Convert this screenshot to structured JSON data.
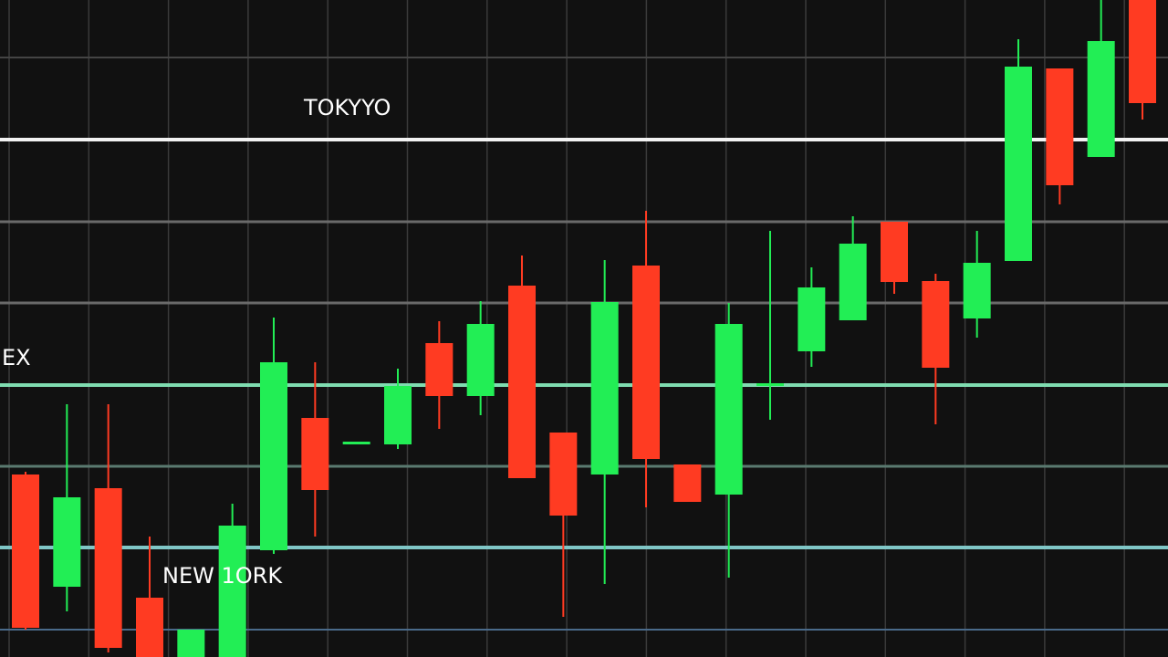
{
  "chart_data": {
    "type": "candlestick",
    "annotations": [
      "TOKYYO",
      "EX",
      "NEW 1ORK"
    ],
    "up_color": "#22ee55",
    "down_color": "#ff3b22",
    "ylim": [
      0,
      720
    ],
    "series": {
      "open": [
        200,
        77,
        185,
        65,
        0,
        0,
        117,
        262,
        236,
        233,
        344,
        286,
        407,
        246,
        200,
        429,
        211,
        178,
        300,
        335,
        369,
        477,
        412,
        371,
        434,
        645,
        548,
        720
      ],
      "close": [
        32,
        175,
        10,
        0,
        30,
        144,
        323,
        183,
        236,
        297,
        286,
        365,
        196,
        155,
        389,
        217,
        170,
        365,
        300,
        405,
        453,
        411,
        317,
        432,
        647,
        517,
        675,
        607
      ],
      "high": [
        203,
        277,
        277,
        132,
        30,
        168,
        372,
        323,
        236,
        316,
        368,
        390,
        440,
        246,
        435,
        489,
        211,
        388,
        467,
        427,
        483,
        477,
        420,
        467,
        677,
        645,
        720,
        720
      ],
      "low": [
        30,
        50,
        5,
        0,
        0,
        0,
        113,
        132,
        236,
        228,
        250,
        265,
        196,
        44,
        80,
        164,
        170,
        87,
        260,
        318,
        369,
        398,
        255,
        350,
        434,
        496,
        548,
        589
      ]
    }
  }
}
